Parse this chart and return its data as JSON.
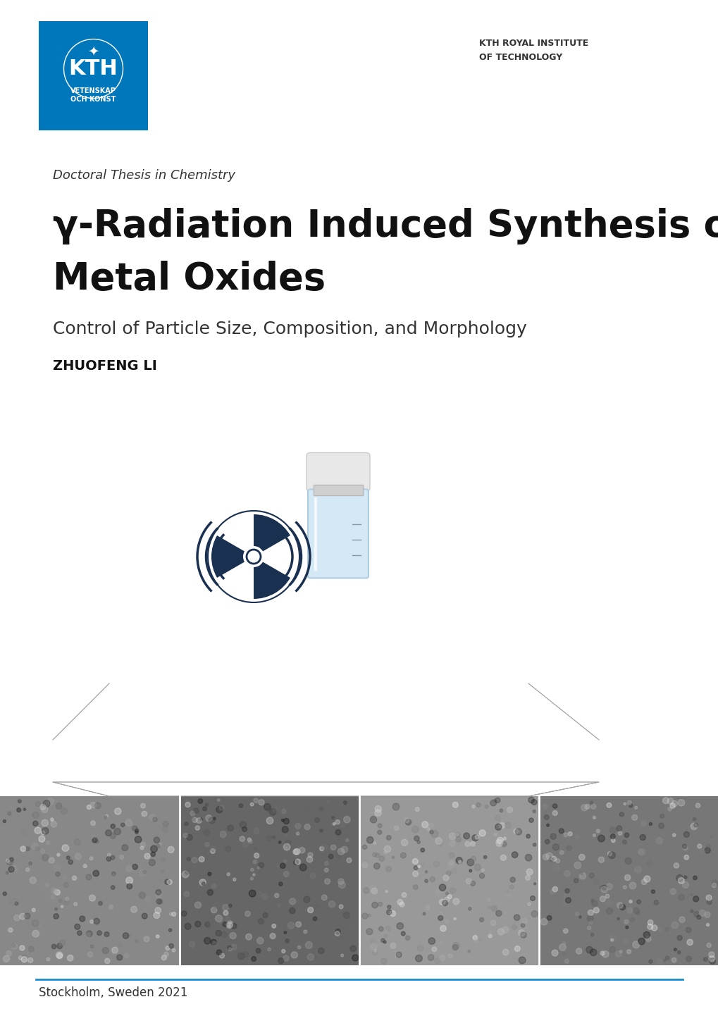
{
  "background_color": "#ffffff",
  "kth_blue": "#0077BB",
  "kth_logo_text_line1": "KTH",
  "kth_logo_text_line2": "VETENSKAP",
  "kth_logo_text_line3": "OCH KONST",
  "institute_line1": "KTH ROYAL INSTITUTE",
  "institute_line2": "OF TECHNOLOGY",
  "thesis_type": "Doctoral Thesis in Chemistry",
  "title_line1": "γ-Radiation Induced Synthesis of",
  "title_line2": "Metal Oxides",
  "subtitle": "Control of Particle Size, Composition, and Morphology",
  "author": "ZHUOFENG LI",
  "footer": "Stockholm, Sweden 2021",
  "footer_line_color": "#1a8fcf",
  "text_color": "#1a1a1a",
  "dark_color": "#1a1a1a",
  "gray_color": "#555555"
}
